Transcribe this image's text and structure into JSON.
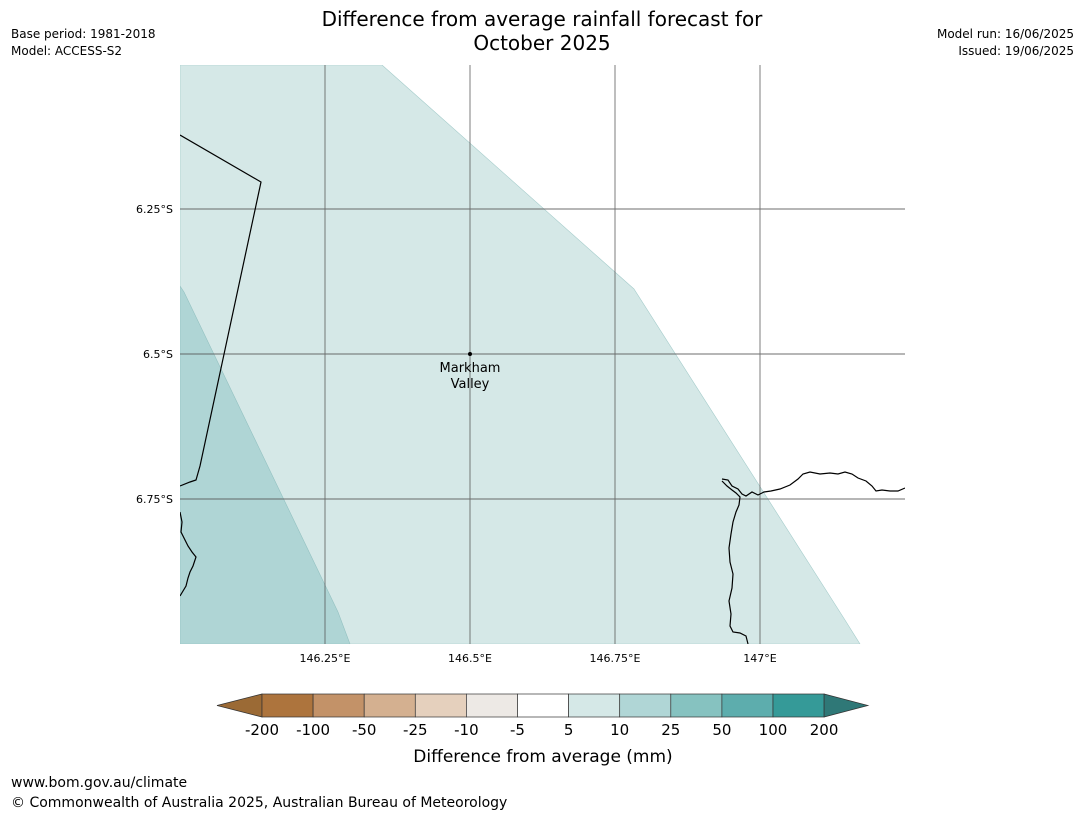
{
  "title": {
    "line1": "Difference from average rainfall forecast for",
    "line2": "October 2025"
  },
  "header_left": {
    "base_period": "Base period: 1981-2018",
    "model": "Model: ACCESS-S2"
  },
  "header_right": {
    "model_run": "Model run: 16/06/2025",
    "issued": "Issued: 19/06/2025"
  },
  "map": {
    "lat_labels": [
      "6.25°S",
      "6.5°S",
      "6.75°S"
    ],
    "lon_labels": [
      "146.25°E",
      "146.5°E",
      "146.75°E",
      "147°E"
    ],
    "place": {
      "name_line1": "Markham",
      "name_line2": "Valley"
    },
    "region_categories": [
      "5 to 10",
      "10 to 25"
    ]
  },
  "colorbar": {
    "tick_labels": [
      "-200",
      "-100",
      "-50",
      "-25",
      "-10",
      "-5",
      "5",
      "10",
      "25",
      "50",
      "100",
      "200"
    ],
    "colors": [
      "#9b6a35",
      "#ad743d",
      "#c39268",
      "#d4b090",
      "#e5d0bd",
      "#ede9e5",
      "#ffffff",
      "#d5e8e7",
      "#b0d6d6",
      "#86c2c0",
      "#5dadad",
      "#359a98",
      "#2f7877"
    ],
    "label": "Difference from average (mm)"
  },
  "footer": {
    "url": "www.bom.gov.au/climate",
    "copyright": "© Commonwealth of Australia 2025, Australian Bureau of Meteorology"
  }
}
